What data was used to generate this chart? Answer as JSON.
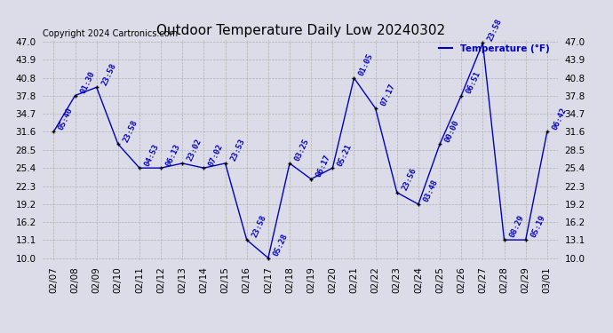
{
  "title": "Outdoor Temperature Daily Low 20240302",
  "copyright": "Copyright 2024 Cartronics.com",
  "legend_label": "Temperature (°F)",
  "dates": [
    "02/07",
    "02/08",
    "02/09",
    "02/10",
    "02/11",
    "02/12",
    "02/13",
    "02/14",
    "02/15",
    "02/16",
    "02/17",
    "02/18",
    "02/19",
    "02/20",
    "02/21",
    "02/22",
    "02/23",
    "02/24",
    "02/25",
    "02/26",
    "02/27",
    "02/28",
    "02/29",
    "03/01"
  ],
  "values": [
    31.6,
    37.8,
    39.2,
    29.5,
    25.4,
    25.4,
    26.2,
    25.4,
    26.2,
    13.1,
    10.0,
    26.2,
    23.5,
    25.4,
    40.8,
    35.6,
    21.2,
    19.2,
    29.5,
    37.8,
    46.8,
    13.1,
    13.1,
    31.6
  ],
  "labels": [
    "05:40",
    "01:30",
    "23:58",
    "23:58",
    "04:53",
    "06:13",
    "23:02",
    "07:02",
    "23:53",
    "23:58",
    "05:28",
    "03:25",
    "06:17",
    "05:21",
    "01:05",
    "07:17",
    "23:56",
    "03:48",
    "00:00",
    "06:51",
    "23:58",
    "08:29",
    "05:19",
    "06:42"
  ],
  "ylim_min": 10.0,
  "ylim_max": 47.0,
  "yticks": [
    10.0,
    13.1,
    16.2,
    19.2,
    22.3,
    25.4,
    28.5,
    31.6,
    34.7,
    37.8,
    40.8,
    43.9,
    47.0
  ],
  "line_color": "#0000bb",
  "marker_color": "#000000",
  "bg_color": "#dcdce8",
  "grid_color": "#b0b0b0",
  "title_fontsize": 11,
  "label_fontsize": 6.5,
  "tick_fontsize": 7.5,
  "copyright_fontsize": 7
}
